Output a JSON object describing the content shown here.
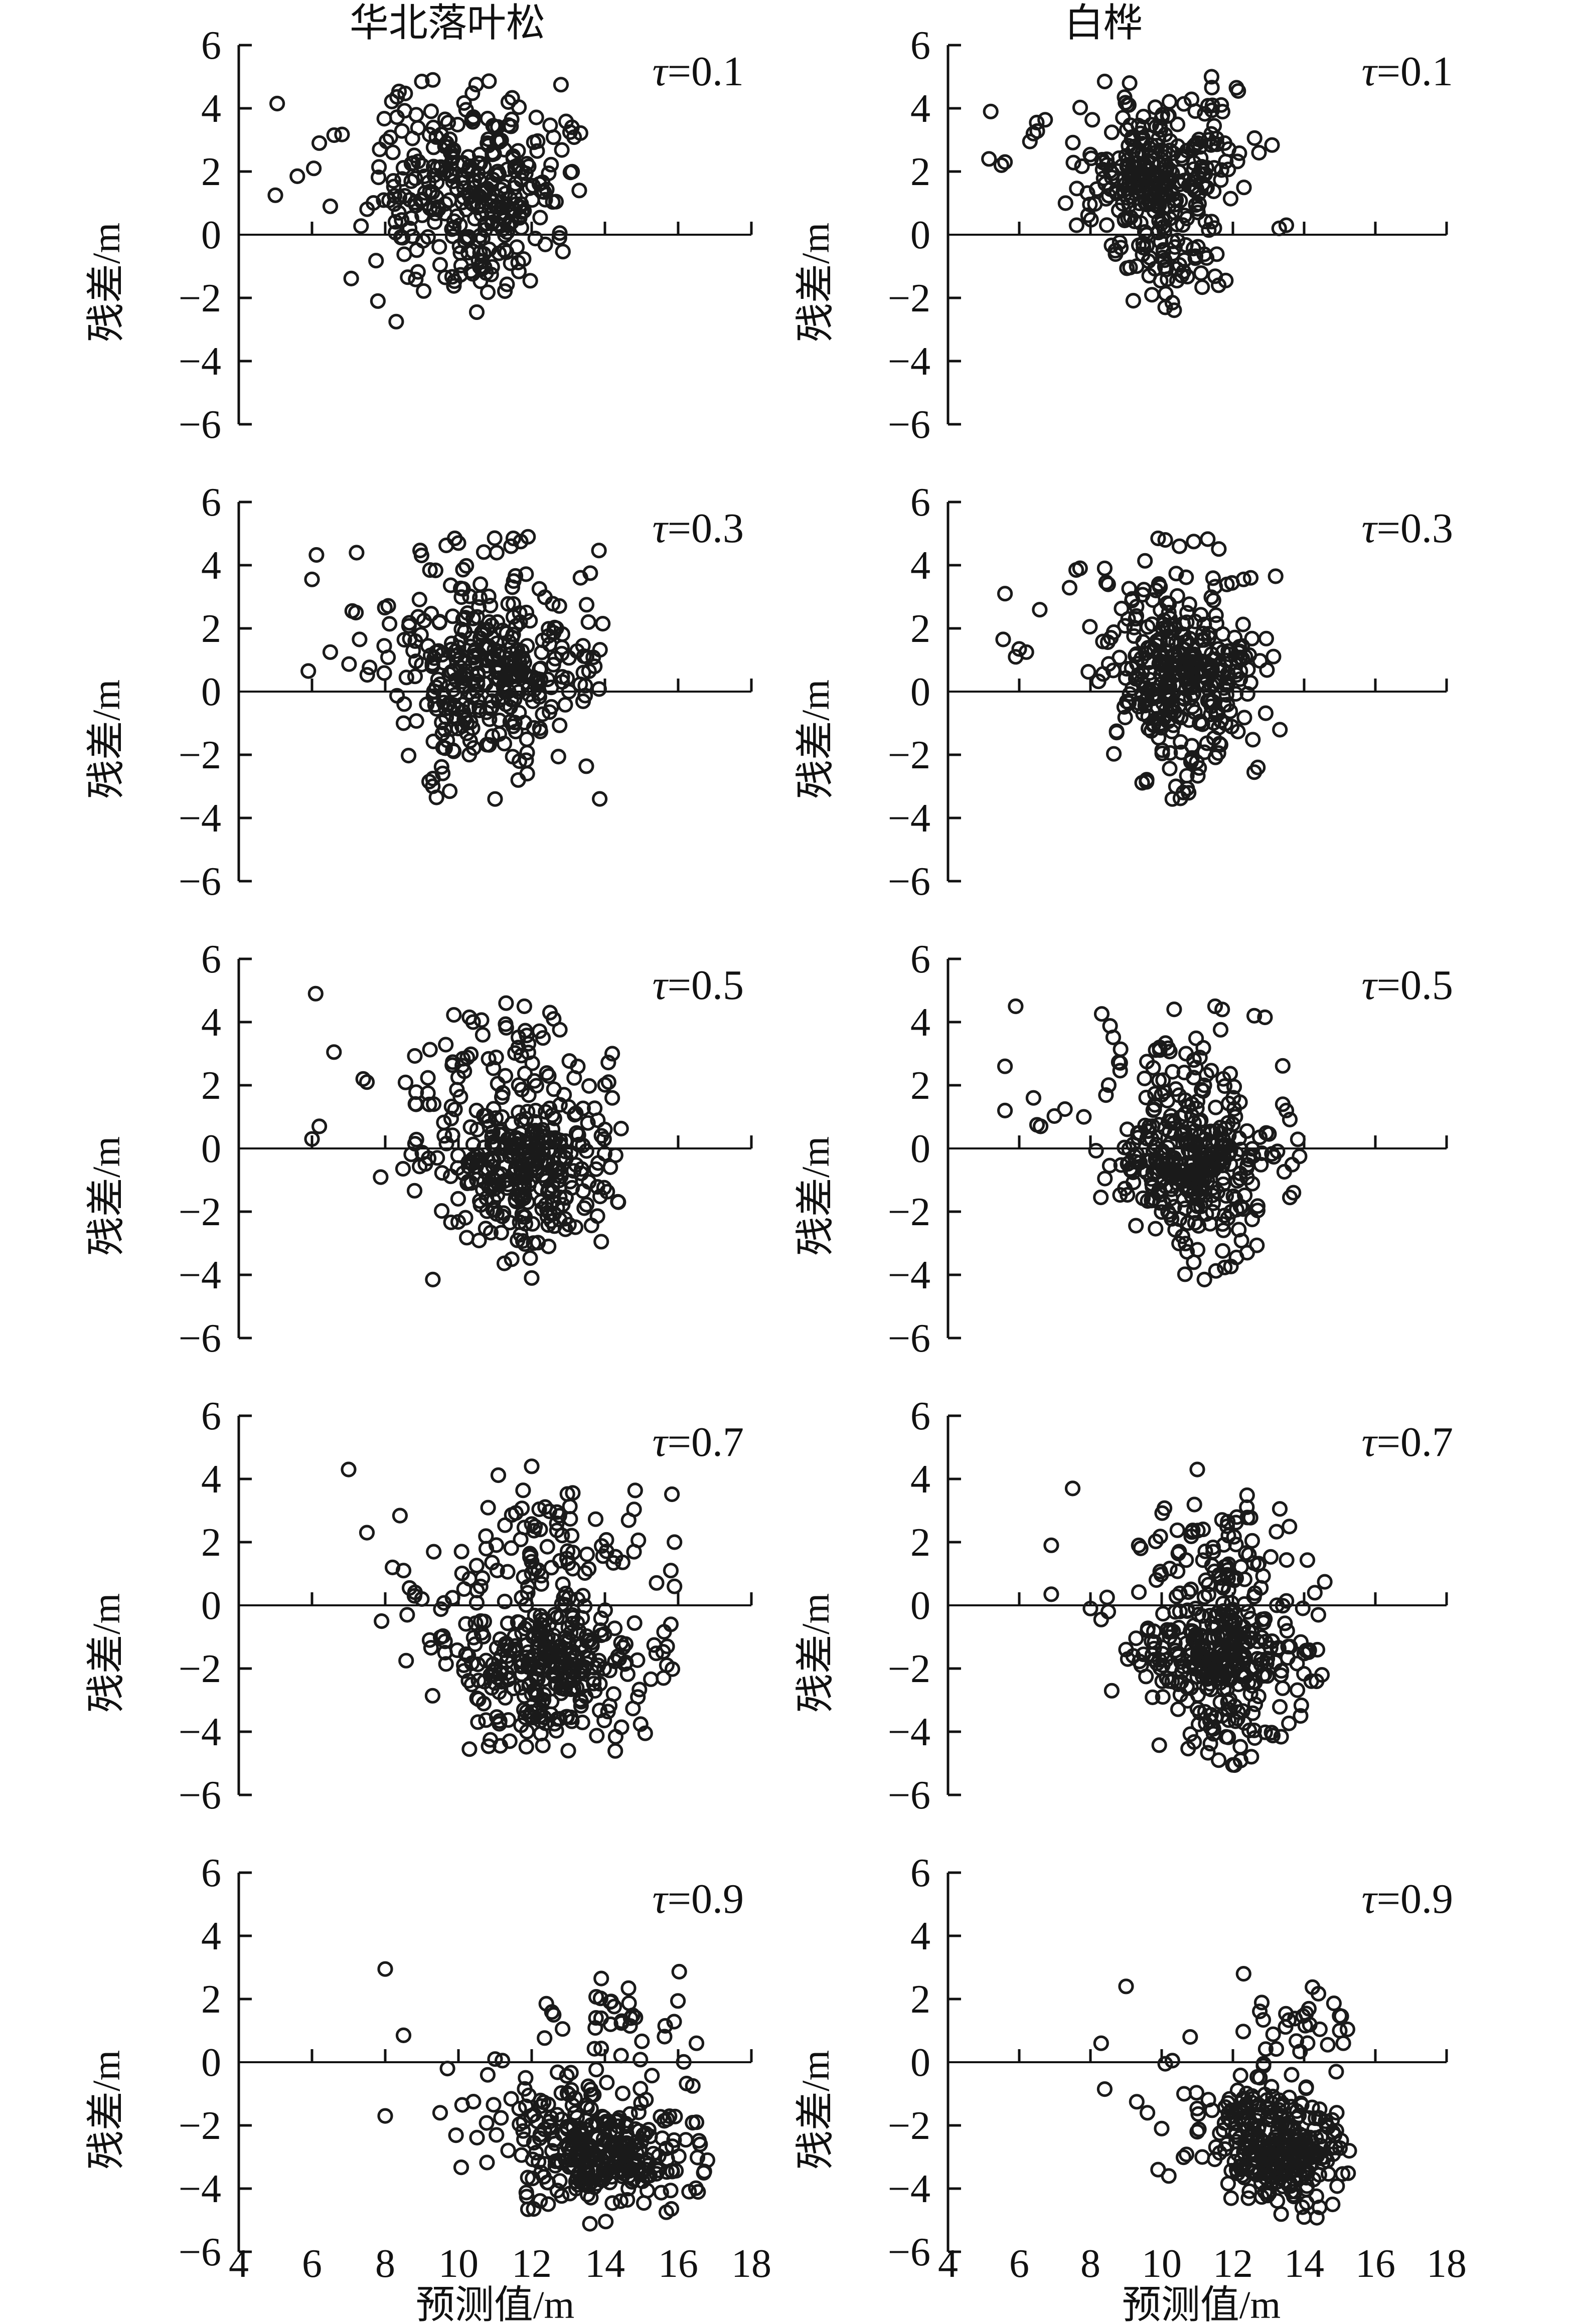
{
  "figure": {
    "column_titles": [
      "华北落叶松",
      "白桦"
    ],
    "ylabel": "残差/m",
    "xlabel": "预测值/m"
  },
  "chart_data": {
    "type": "scatter",
    "layout": "5 rows x 2 columns; rows are quantiles tau (0.1,0.3,0.5,0.7,0.9), left column species 华北落叶松, right column species 白桦",
    "title": "",
    "xlabel": "预测值/m",
    "ylabel": "残差/m",
    "x_range": [
      4,
      18
    ],
    "y_range": [
      -6,
      6
    ],
    "x_tick_values": [
      4,
      6,
      8,
      10,
      12,
      14,
      16,
      18
    ],
    "x_tick_labels": [
      "4",
      "6",
      "8",
      "10",
      "12",
      "14",
      "16",
      "18"
    ],
    "y_tick_values": [
      6,
      4,
      2,
      0,
      -2,
      -4,
      -6
    ],
    "y_tick_labels": [
      "6",
      "4",
      "2",
      "0",
      "−2",
      "−4",
      "−6"
    ],
    "grid": false,
    "legend": "none",
    "marker": "open-circle",
    "marker_color": "#1a1a1a",
    "note": "Dense residual clouds (~330-400 points per panel) are represented by gaussian cluster specs (cx,cy,sdx,sdy,n) plus explicit outlier points read from the figure; points are regenerated deterministically from the stored seed.",
    "panels": [
      {
        "id": "larch-tau-0.1",
        "species": "华北落叶松",
        "tau": 0.1,
        "tau_label": "τ=0.1",
        "row": 0,
        "col": 0,
        "seed": 101,
        "clip": [
          4.9,
          13.5,
          -2.85,
          5.05
        ],
        "clusters": [
          {
            "cx": 10.4,
            "cy": 1.3,
            "sdx": 1.25,
            "sdy": 0.95,
            "n": 215
          },
          {
            "cx": 10.6,
            "cy": 3.6,
            "sdx": 1.5,
            "sdy": 0.75,
            "n": 60
          },
          {
            "cx": 10.3,
            "cy": -0.9,
            "sdx": 1.05,
            "sdy": 0.75,
            "n": 45
          }
        ],
        "outliers": [
          [
            5.05,
            4.15
          ],
          [
            5.0,
            1.25
          ],
          [
            5.6,
            1.85
          ],
          [
            6.2,
            2.9
          ],
          [
            6.05,
            2.1
          ],
          [
            6.5,
            0.9
          ],
          [
            7.8,
            -2.1
          ],
          [
            8.3,
            -2.75
          ],
          [
            10.5,
            -2.45
          ],
          [
            9.0,
            4.85
          ],
          [
            9.3,
            4.9
          ],
          [
            12.8,
            4.75
          ],
          [
            13.1,
            3.4
          ],
          [
            13.3,
            1.4
          ]
        ]
      },
      {
        "id": "birch-tau-0.1",
        "species": "白桦",
        "tau": 0.1,
        "tau_label": "τ=0.1",
        "row": 0,
        "col": 1,
        "seed": 102,
        "clip": [
          4.9,
          13.8,
          -2.45,
          5.05
        ],
        "clusters": [
          {
            "cx": 9.9,
            "cy": 1.5,
            "sdx": 1.05,
            "sdy": 0.9,
            "n": 225
          },
          {
            "cx": 9.6,
            "cy": 3.3,
            "sdx": 1.45,
            "sdy": 0.7,
            "n": 60
          },
          {
            "cx": 10.2,
            "cy": -0.9,
            "sdx": 0.85,
            "sdy": 0.65,
            "n": 45
          }
        ],
        "outliers": [
          [
            5.2,
            3.9
          ],
          [
            5.15,
            2.4
          ],
          [
            5.5,
            2.2
          ],
          [
            5.6,
            2.3
          ],
          [
            6.4,
            3.2
          ],
          [
            6.3,
            2.95
          ],
          [
            10.1,
            -2.3
          ],
          [
            10.3,
            -2.15
          ],
          [
            11.6,
            -1.6
          ],
          [
            11.8,
            -1.45
          ],
          [
            8.4,
            4.85
          ],
          [
            9.1,
            4.8
          ],
          [
            11.4,
            5.0
          ],
          [
            12.1,
            4.65
          ],
          [
            12.15,
            4.55
          ],
          [
            13.3,
            0.2
          ],
          [
            13.5,
            0.3
          ]
        ]
      },
      {
        "id": "larch-tau-0.3",
        "species": "华北落叶松",
        "tau": 0.3,
        "tau_label": "τ=0.3",
        "row": 1,
        "col": 0,
        "seed": 103,
        "clip": [
          5.6,
          14.0,
          -3.5,
          5.0
        ],
        "clusters": [
          {
            "cx": 10.9,
            "cy": 0.55,
            "sdx": 1.3,
            "sdy": 0.85,
            "n": 225
          },
          {
            "cx": 10.6,
            "cy": 2.9,
            "sdx": 1.5,
            "sdy": 0.95,
            "n": 65
          },
          {
            "cx": 10.7,
            "cy": -1.6,
            "sdx": 1.0,
            "sdy": 0.75,
            "n": 50
          }
        ],
        "outliers": [
          [
            6.0,
            3.55
          ],
          [
            7.1,
            2.55
          ],
          [
            7.2,
            2.5
          ],
          [
            6.5,
            1.25
          ],
          [
            5.9,
            0.65
          ],
          [
            7.3,
            1.65
          ],
          [
            11.0,
            -3.4
          ],
          [
            9.4,
            -3.35
          ],
          [
            9.2,
            -2.85
          ],
          [
            8.5,
            -1.0
          ],
          [
            13.6,
            3.75
          ],
          [
            13.5,
            2.75
          ],
          [
            13.55,
            2.2
          ],
          [
            13.4,
            1.45
          ],
          [
            13.5,
            1.1
          ],
          [
            9.9,
            4.85
          ],
          [
            10.0,
            4.7
          ],
          [
            11.5,
            4.85
          ],
          [
            11.7,
            4.75
          ],
          [
            11.9,
            4.9
          ]
        ]
      },
      {
        "id": "birch-tau-0.3",
        "species": "白桦",
        "tau": 0.3,
        "tau_label": "τ=0.3",
        "row": 1,
        "col": 1,
        "seed": 104,
        "clip": [
          5.3,
          13.6,
          -3.45,
          4.95
        ],
        "clusters": [
          {
            "cx": 10.5,
            "cy": 0.55,
            "sdx": 1.0,
            "sdy": 0.8,
            "n": 230
          },
          {
            "cx": 10.1,
            "cy": 2.7,
            "sdx": 1.3,
            "sdy": 0.9,
            "n": 65
          },
          {
            "cx": 10.6,
            "cy": -1.6,
            "sdx": 0.85,
            "sdy": 0.8,
            "n": 50
          }
        ],
        "outliers": [
          [
            5.6,
            3.1
          ],
          [
            5.55,
            1.65
          ],
          [
            6.0,
            1.35
          ],
          [
            6.2,
            1.25
          ],
          [
            5.9,
            1.1
          ],
          [
            7.6,
            3.85
          ],
          [
            8.4,
            3.9
          ],
          [
            10.3,
            -3.4
          ],
          [
            10.4,
            -3.0
          ],
          [
            12.3,
            3.55
          ],
          [
            12.5,
            3.6
          ],
          [
            13.2,
            3.65
          ],
          [
            9.9,
            4.85
          ],
          [
            10.1,
            4.8
          ],
          [
            10.5,
            4.6
          ],
          [
            10.9,
            4.75
          ],
          [
            12.6,
            -2.55
          ],
          [
            12.7,
            -2.4
          ]
        ]
      },
      {
        "id": "larch-tau-0.5",
        "species": "华北落叶松",
        "tau": 0.5,
        "tau_label": "τ=0.5",
        "row": 2,
        "col": 0,
        "seed": 105,
        "clip": [
          5.9,
          14.5,
          -4.25,
          4.95
        ],
        "clusters": [
          {
            "cx": 11.9,
            "cy": -0.4,
            "sdx": 1.25,
            "sdy": 0.85,
            "n": 235
          },
          {
            "cx": 11.1,
            "cy": 2.3,
            "sdx": 1.5,
            "sdy": 1.0,
            "n": 75
          },
          {
            "cx": 11.6,
            "cy": -2.4,
            "sdx": 1.0,
            "sdy": 0.75,
            "n": 50
          }
        ],
        "outliers": [
          [
            6.1,
            4.9
          ],
          [
            6.6,
            3.05
          ],
          [
            7.4,
            2.2
          ],
          [
            7.5,
            2.1
          ],
          [
            6.2,
            0.7
          ],
          [
            6.0,
            0.3
          ],
          [
            9.3,
            -4.15
          ],
          [
            12.0,
            -4.1
          ],
          [
            13.9,
            -2.95
          ],
          [
            14.2,
            3.0
          ],
          [
            14.1,
            2.1
          ],
          [
            14.2,
            1.6
          ],
          [
            14.0,
            0.6
          ],
          [
            11.3,
            4.6
          ],
          [
            11.8,
            4.5
          ],
          [
            12.5,
            4.3
          ],
          [
            12.6,
            4.1
          ],
          [
            10.3,
            4.15
          ],
          [
            10.4,
            4.0
          ]
        ]
      },
      {
        "id": "birch-tau-0.5",
        "species": "白桦",
        "tau": 0.5,
        "tau_label": "τ=0.5",
        "row": 2,
        "col": 1,
        "seed": 106,
        "clip": [
          5.5,
          13.9,
          -4.2,
          4.6
        ],
        "clusters": [
          {
            "cx": 10.9,
            "cy": -0.35,
            "sdx": 1.05,
            "sdy": 0.8,
            "n": 240
          },
          {
            "cx": 10.4,
            "cy": 2.2,
            "sdx": 1.4,
            "sdy": 0.9,
            "n": 70
          },
          {
            "cx": 11.0,
            "cy": -2.4,
            "sdx": 0.9,
            "sdy": 0.8,
            "n": 50
          }
        ],
        "outliers": [
          [
            5.9,
            4.5
          ],
          [
            5.6,
            2.6
          ],
          [
            5.6,
            1.2
          ],
          [
            6.4,
            1.6
          ],
          [
            6.5,
            0.75
          ],
          [
            6.6,
            0.7
          ],
          [
            11.2,
            -4.15
          ],
          [
            10.9,
            -3.6
          ],
          [
            12.1,
            -3.45
          ],
          [
            12.4,
            -3.3
          ],
          [
            12.9,
            4.15
          ],
          [
            12.6,
            4.2
          ],
          [
            11.5,
            4.5
          ],
          [
            11.7,
            4.4
          ],
          [
            13.4,
            1.4
          ],
          [
            13.5,
            1.2
          ],
          [
            13.6,
            -1.55
          ],
          [
            13.7,
            -1.4
          ]
        ]
      },
      {
        "id": "larch-tau-0.7",
        "species": "华北落叶松",
        "tau": 0.7,
        "tau_label": "τ=0.7",
        "row": 3,
        "col": 0,
        "seed": 107,
        "clip": [
          6.9,
          16.2,
          -4.7,
          4.45
        ],
        "clusters": [
          {
            "cx": 12.4,
            "cy": -1.6,
            "sdx": 1.35,
            "sdy": 0.85,
            "n": 250
          },
          {
            "cx": 12.1,
            "cy": 0.9,
            "sdx": 1.5,
            "sdy": 0.85,
            "n": 70
          },
          {
            "cx": 12.6,
            "cy": 2.9,
            "sdx": 1.2,
            "sdy": 0.5,
            "n": 28
          },
          {
            "cx": 12.4,
            "cy": -3.6,
            "sdx": 1.1,
            "sdy": 0.55,
            "n": 40
          }
        ],
        "outliers": [
          [
            7.0,
            4.3
          ],
          [
            7.5,
            2.3
          ],
          [
            12.0,
            4.4
          ],
          [
            8.2,
            1.2
          ],
          [
            8.5,
            1.1
          ],
          [
            7.9,
            -0.5
          ],
          [
            8.8,
            0.3
          ],
          [
            9.0,
            0.2
          ],
          [
            8.6,
            -0.3
          ],
          [
            15.9,
            2.0
          ],
          [
            15.8,
            1.1
          ],
          [
            15.9,
            0.6
          ],
          [
            15.8,
            -0.6
          ],
          [
            15.7,
            -1.3
          ],
          [
            15.6,
            -2.3
          ],
          [
            14.9,
            -2.9
          ],
          [
            15.1,
            -4.05
          ],
          [
            10.3,
            -4.55
          ],
          [
            13.0,
            -4.6
          ],
          [
            11.4,
            -4.3
          ]
        ]
      },
      {
        "id": "birch-tau-0.7",
        "species": "白桦",
        "tau": 0.7,
        "tau_label": "τ=0.7",
        "row": 3,
        "col": 1,
        "seed": 108,
        "clip": [
          6.8,
          14.8,
          -5.1,
          4.35
        ],
        "clusters": [
          {
            "cx": 11.6,
            "cy": -1.5,
            "sdx": 1.05,
            "sdy": 0.8,
            "n": 250
          },
          {
            "cx": 11.4,
            "cy": 1.0,
            "sdx": 1.35,
            "sdy": 0.8,
            "n": 70
          },
          {
            "cx": 11.9,
            "cy": 2.8,
            "sdx": 0.95,
            "sdy": 0.45,
            "n": 22
          },
          {
            "cx": 11.8,
            "cy": -3.7,
            "sdx": 0.95,
            "sdy": 0.6,
            "n": 45
          }
        ],
        "outliers": [
          [
            7.5,
            3.7
          ],
          [
            6.9,
            1.9
          ],
          [
            6.9,
            0.35
          ],
          [
            11.0,
            4.3
          ],
          [
            8.5,
            -0.2
          ],
          [
            8.3,
            -0.45
          ],
          [
            8.0,
            -0.1
          ],
          [
            12.0,
            -5.05
          ],
          [
            11.6,
            -4.9
          ],
          [
            14.3,
            0.4
          ],
          [
            14.4,
            -0.3
          ],
          [
            14.5,
            -2.2
          ],
          [
            14.2,
            -2.4
          ],
          [
            13.9,
            -3.5
          ],
          [
            9.2,
            -1.6
          ],
          [
            9.0,
            -1.4
          ]
        ]
      },
      {
        "id": "larch-tau-0.9",
        "species": "华北落叶松",
        "tau": 0.9,
        "tau_label": "τ=0.9",
        "row": 4,
        "col": 0,
        "seed": 109,
        "clip": [
          7.9,
          17.0,
          -5.15,
          3.0
        ],
        "clusters": [
          {
            "cx": 14.1,
            "cy": -3.1,
            "sdx": 1.25,
            "sdy": 0.8,
            "n": 250
          },
          {
            "cx": 13.0,
            "cy": -1.4,
            "sdx": 1.4,
            "sdy": 0.65,
            "n": 60
          },
          {
            "cx": 14.6,
            "cy": 1.1,
            "sdx": 0.95,
            "sdy": 0.6,
            "n": 32
          }
        ],
        "outliers": [
          [
            8.0,
            2.95
          ],
          [
            8.5,
            0.85
          ],
          [
            8.0,
            -1.7
          ],
          [
            9.5,
            -1.6
          ],
          [
            9.7,
            -0.2
          ],
          [
            10.1,
            -1.35
          ],
          [
            13.9,
            2.65
          ],
          [
            16.5,
            0.6
          ],
          [
            16.4,
            -0.75
          ],
          [
            16.5,
            -1.9
          ],
          [
            16.6,
            -2.6
          ],
          [
            16.8,
            -3.1
          ],
          [
            16.7,
            -3.5
          ],
          [
            11.0,
            0.1
          ],
          [
            11.2,
            0.05
          ],
          [
            10.8,
            -0.4
          ],
          [
            12.4,
            1.85
          ],
          [
            12.6,
            1.5
          ]
        ]
      },
      {
        "id": "birch-tau-0.9",
        "species": "白桦",
        "tau": 0.9,
        "tau_label": "τ=0.9",
        "row": 4,
        "col": 1,
        "seed": 110,
        "clip": [
          8.1,
          15.3,
          -5.05,
          2.9
        ],
        "clusters": [
          {
            "cx": 13.3,
            "cy": -2.9,
            "sdx": 1.0,
            "sdy": 0.8,
            "n": 250
          },
          {
            "cx": 12.4,
            "cy": -1.3,
            "sdx": 1.15,
            "sdy": 0.6,
            "n": 55
          },
          {
            "cx": 13.8,
            "cy": 1.2,
            "sdx": 0.75,
            "sdy": 0.5,
            "n": 28
          }
        ],
        "outliers": [
          [
            9.0,
            2.4
          ],
          [
            12.3,
            2.8
          ],
          [
            8.3,
            0.6
          ],
          [
            8.4,
            -0.85
          ],
          [
            9.3,
            -1.25
          ],
          [
            9.6,
            -1.6
          ],
          [
            10.8,
            0.8
          ],
          [
            10.0,
            -2.1
          ],
          [
            14.9,
            -0.3
          ],
          [
            15.0,
            1.0
          ],
          [
            15.1,
            0.6
          ],
          [
            10.1,
            -0.05
          ],
          [
            10.3,
            0.05
          ],
          [
            9.9,
            -3.4
          ],
          [
            10.2,
            -3.6
          ],
          [
            14.8,
            -4.5
          ],
          [
            14.0,
            -4.9
          ]
        ]
      }
    ]
  }
}
